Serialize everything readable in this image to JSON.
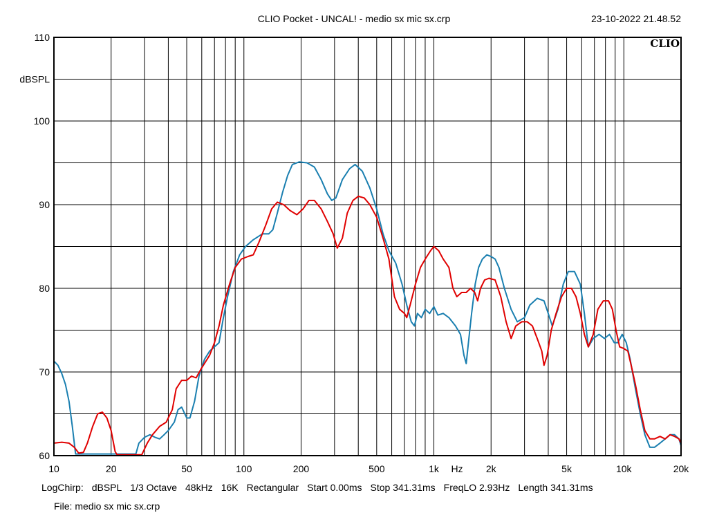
{
  "header": {
    "title": "CLIO Pocket - UNCAL! - medio sx mic sx.crp",
    "datetime": "23-10-2022 21.48.52"
  },
  "brand": "CLIO",
  "footer": {
    "items": [
      "LogChirp:",
      "dBSPL",
      "1/3 Octave",
      "48kHz",
      "16K",
      "Rectangular",
      "Start 0.00ms",
      "Stop 341.31ms",
      "FreqLO 2.93Hz",
      "Length 341.31ms"
    ],
    "file": "File: medio sx mic sx.crp"
  },
  "colors": {
    "background": "#ffffff",
    "grid": "#000000",
    "red_series": "#e00000",
    "blue_series": "#1a7fb0"
  },
  "chart_data": {
    "type": "line",
    "xscale": "log",
    "xlim": [
      10,
      20000
    ],
    "ylim": [
      60,
      110
    ],
    "ylabel": "dBSPL",
    "xunit_label": "Hz",
    "y_ticks": [
      {
        "value": 110,
        "label": "110"
      },
      {
        "value": 100,
        "label": "100"
      },
      {
        "value": 90,
        "label": "90"
      },
      {
        "value": 80,
        "label": "80"
      },
      {
        "value": 70,
        "label": "70"
      },
      {
        "value": 60,
        "label": "60"
      }
    ],
    "y_minor_gridlines": [
      65,
      75,
      85,
      95,
      105
    ],
    "x_ticks": [
      {
        "value": 10,
        "label": "10"
      },
      {
        "value": 20,
        "label": "20"
      },
      {
        "value": 50,
        "label": "50"
      },
      {
        "value": 100,
        "label": "100"
      },
      {
        "value": 200,
        "label": "200"
      },
      {
        "value": 500,
        "label": "500"
      },
      {
        "value": 1000,
        "label": "1k"
      },
      {
        "value": 2000,
        "label": "2k"
      },
      {
        "value": 5000,
        "label": "5k"
      },
      {
        "value": 10000,
        "label": "10k"
      },
      {
        "value": 20000,
        "label": "20k"
      }
    ],
    "grid": true,
    "series": [
      {
        "color": "#1a7fb0",
        "points": [
          [
            10,
            71.3
          ],
          [
            10.5,
            70.8
          ],
          [
            11,
            69.8
          ],
          [
            11.5,
            68.5
          ],
          [
            12,
            66.5
          ],
          [
            12.5,
            63.5
          ],
          [
            13,
            60.2
          ],
          [
            27,
            60.2
          ],
          [
            28,
            61.5
          ],
          [
            30,
            62.2
          ],
          [
            32,
            62.5
          ],
          [
            34,
            62.2
          ],
          [
            36,
            62.0
          ],
          [
            38,
            62.5
          ],
          [
            40,
            63.0
          ],
          [
            43,
            64.0
          ],
          [
            45,
            65.5
          ],
          [
            47,
            65.8
          ],
          [
            50,
            64.5
          ],
          [
            52,
            64.5
          ],
          [
            55,
            66.5
          ],
          [
            58,
            69.5
          ],
          [
            62,
            71.5
          ],
          [
            66,
            72.5
          ],
          [
            70,
            73.0
          ],
          [
            74,
            73.5
          ],
          [
            78,
            76.5
          ],
          [
            82,
            79.0
          ],
          [
            88,
            82.0
          ],
          [
            95,
            84.0
          ],
          [
            102,
            85.0
          ],
          [
            112,
            85.8
          ],
          [
            125,
            86.5
          ],
          [
            135,
            86.5
          ],
          [
            142,
            87.0
          ],
          [
            150,
            89.0
          ],
          [
            160,
            91.5
          ],
          [
            170,
            93.5
          ],
          [
            180,
            94.8
          ],
          [
            195,
            95.1
          ],
          [
            215,
            95.0
          ],
          [
            235,
            94.5
          ],
          [
            255,
            93.0
          ],
          [
            275,
            91.3
          ],
          [
            290,
            90.5
          ],
          [
            305,
            90.8
          ],
          [
            330,
            93.0
          ],
          [
            360,
            94.3
          ],
          [
            385,
            94.8
          ],
          [
            420,
            94.0
          ],
          [
            460,
            92.0
          ],
          [
            500,
            89.5
          ],
          [
            540,
            86.5
          ],
          [
            580,
            84.5
          ],
          [
            630,
            83.0
          ],
          [
            680,
            80.5
          ],
          [
            720,
            78.0
          ],
          [
            760,
            76.0
          ],
          [
            790,
            75.5
          ],
          [
            820,
            77.0
          ],
          [
            860,
            76.5
          ],
          [
            900,
            77.5
          ],
          [
            950,
            77.0
          ],
          [
            1000,
            77.8
          ],
          [
            1050,
            76.8
          ],
          [
            1120,
            77.0
          ],
          [
            1200,
            76.5
          ],
          [
            1300,
            75.5
          ],
          [
            1380,
            74.5
          ],
          [
            1440,
            72.0
          ],
          [
            1480,
            71.0
          ],
          [
            1520,
            73.5
          ],
          [
            1580,
            77.0
          ],
          [
            1650,
            80.5
          ],
          [
            1720,
            82.5
          ],
          [
            1800,
            83.5
          ],
          [
            1900,
            84.0
          ],
          [
            2000,
            83.8
          ],
          [
            2100,
            83.5
          ],
          [
            2200,
            82.5
          ],
          [
            2350,
            80.0
          ],
          [
            2550,
            77.5
          ],
          [
            2750,
            76.0
          ],
          [
            3000,
            76.5
          ],
          [
            3200,
            78.0
          ],
          [
            3500,
            78.8
          ],
          [
            3800,
            78.5
          ],
          [
            4000,
            77.0
          ],
          [
            4200,
            75.5
          ],
          [
            4500,
            77.5
          ],
          [
            4800,
            80.5
          ],
          [
            5100,
            82.0
          ],
          [
            5500,
            82.0
          ],
          [
            5900,
            80.5
          ],
          [
            6200,
            77.0
          ],
          [
            6500,
            73.0
          ],
          [
            6900,
            74.0
          ],
          [
            7400,
            74.5
          ],
          [
            7900,
            74.0
          ],
          [
            8400,
            74.5
          ],
          [
            8900,
            73.5
          ],
          [
            9300,
            73.5
          ],
          [
            9800,
            74.5
          ],
          [
            10300,
            73.5
          ],
          [
            10800,
            71.5
          ],
          [
            11500,
            68.0
          ],
          [
            12200,
            65.0
          ],
          [
            12900,
            62.5
          ],
          [
            13700,
            61.0
          ],
          [
            14500,
            61.0
          ],
          [
            15500,
            61.5
          ],
          [
            16500,
            62.0
          ],
          [
            17500,
            62.5
          ],
          [
            18500,
            62.5
          ],
          [
            19500,
            62.0
          ],
          [
            20000,
            61.2
          ]
        ]
      },
      {
        "color": "#e00000",
        "points": [
          [
            10,
            61.5
          ],
          [
            11,
            61.6
          ],
          [
            12,
            61.5
          ],
          [
            12.8,
            61.0
          ],
          [
            13.5,
            60.3
          ],
          [
            14.3,
            60.4
          ],
          [
            15,
            61.5
          ],
          [
            16,
            63.5
          ],
          [
            17,
            65.0
          ],
          [
            18,
            65.2
          ],
          [
            19,
            64.5
          ],
          [
            20,
            63.0
          ],
          [
            21,
            60.5
          ],
          [
            21.5,
            60.1
          ],
          [
            29,
            60.1
          ],
          [
            31,
            61.5
          ],
          [
            33,
            62.5
          ],
          [
            36,
            63.5
          ],
          [
            39,
            64.0
          ],
          [
            42,
            65.5
          ],
          [
            44,
            68.0
          ],
          [
            47,
            69.0
          ],
          [
            50,
            69.0
          ],
          [
            53,
            69.5
          ],
          [
            56,
            69.3
          ],
          [
            60,
            70.5
          ],
          [
            66,
            72.0
          ],
          [
            70,
            73.5
          ],
          [
            74,
            75.5
          ],
          [
            78,
            78.0
          ],
          [
            84,
            80.5
          ],
          [
            90,
            82.5
          ],
          [
            97,
            83.5
          ],
          [
            105,
            83.8
          ],
          [
            112,
            84.0
          ],
          [
            120,
            85.5
          ],
          [
            130,
            87.5
          ],
          [
            140,
            89.5
          ],
          [
            150,
            90.3
          ],
          [
            162,
            90.0
          ],
          [
            175,
            89.3
          ],
          [
            190,
            88.8
          ],
          [
            205,
            89.5
          ],
          [
            220,
            90.5
          ],
          [
            235,
            90.5
          ],
          [
            255,
            89.5
          ],
          [
            275,
            88.0
          ],
          [
            295,
            86.5
          ],
          [
            310,
            84.8
          ],
          [
            330,
            86.0
          ],
          [
            350,
            89.0
          ],
          [
            375,
            90.5
          ],
          [
            400,
            91.0
          ],
          [
            430,
            90.8
          ],
          [
            460,
            90.0
          ],
          [
            500,
            88.5
          ],
          [
            540,
            86.0
          ],
          [
            580,
            83.5
          ],
          [
            620,
            79.0
          ],
          [
            660,
            77.5
          ],
          [
            700,
            77.0
          ],
          [
            720,
            76.5
          ],
          [
            750,
            78.0
          ],
          [
            800,
            80.5
          ],
          [
            850,
            82.5
          ],
          [
            900,
            83.5
          ],
          [
            960,
            84.5
          ],
          [
            1000,
            85.0
          ],
          [
            1060,
            84.5
          ],
          [
            1120,
            83.5
          ],
          [
            1200,
            82.5
          ],
          [
            1260,
            80.0
          ],
          [
            1320,
            79.0
          ],
          [
            1400,
            79.5
          ],
          [
            1480,
            79.5
          ],
          [
            1560,
            80.0
          ],
          [
            1640,
            79.5
          ],
          [
            1700,
            78.5
          ],
          [
            1760,
            80.0
          ],
          [
            1850,
            81.0
          ],
          [
            1950,
            81.2
          ],
          [
            2100,
            81.0
          ],
          [
            2250,
            79.0
          ],
          [
            2400,
            76.0
          ],
          [
            2550,
            74.0
          ],
          [
            2700,
            75.5
          ],
          [
            2900,
            76.0
          ],
          [
            3100,
            76.0
          ],
          [
            3300,
            75.5
          ],
          [
            3500,
            74.0
          ],
          [
            3700,
            72.5
          ],
          [
            3800,
            70.8
          ],
          [
            3950,
            72.0
          ],
          [
            4150,
            75.0
          ],
          [
            4400,
            77.0
          ],
          [
            4700,
            79.0
          ],
          [
            5000,
            80.0
          ],
          [
            5300,
            80.0
          ],
          [
            5600,
            79.0
          ],
          [
            5900,
            77.0
          ],
          [
            6200,
            74.5
          ],
          [
            6500,
            73.0
          ],
          [
            6900,
            74.5
          ],
          [
            7300,
            77.5
          ],
          [
            7800,
            78.5
          ],
          [
            8300,
            78.5
          ],
          [
            8700,
            77.5
          ],
          [
            9100,
            75.0
          ],
          [
            9500,
            73.0
          ],
          [
            10000,
            72.8
          ],
          [
            10500,
            72.5
          ],
          [
            11000,
            70.5
          ],
          [
            11500,
            68.5
          ],
          [
            12200,
            65.5
          ],
          [
            12900,
            63.0
          ],
          [
            13700,
            62.0
          ],
          [
            14500,
            62.0
          ],
          [
            15500,
            62.3
          ],
          [
            16500,
            62.0
          ],
          [
            17500,
            62.5
          ],
          [
            18500,
            62.3
          ],
          [
            19500,
            62.0
          ],
          [
            20000,
            61.5
          ]
        ]
      }
    ]
  }
}
